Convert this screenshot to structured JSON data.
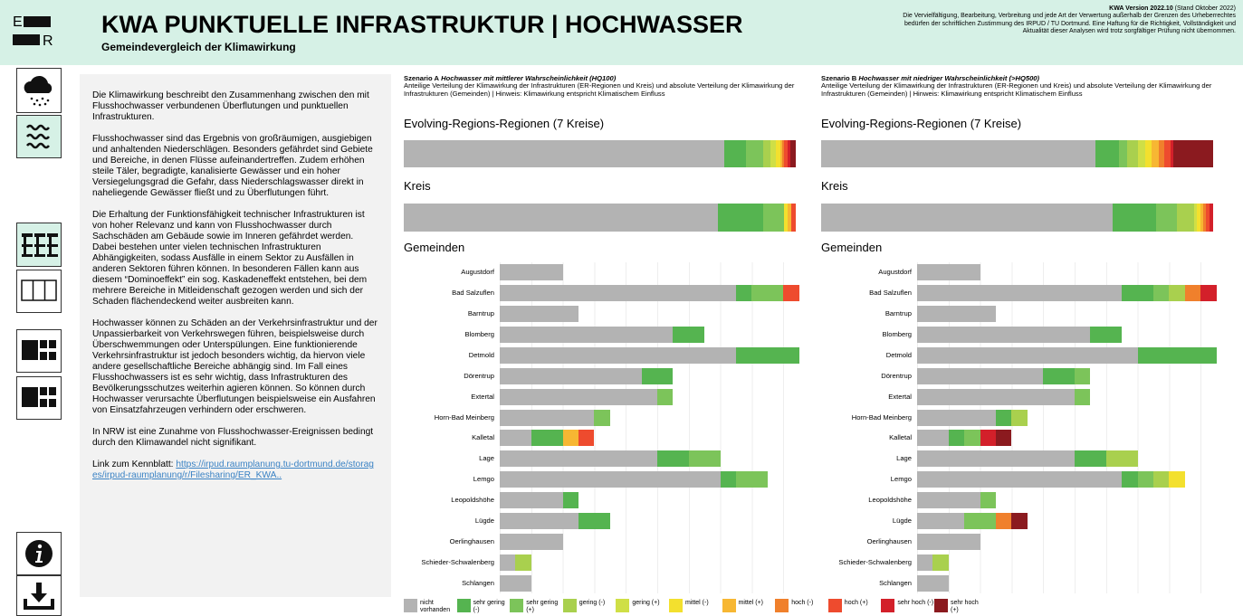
{
  "header": {
    "logo_top": "E",
    "logo_bottom": "R",
    "title": "KWA PUNKTUELLE INFRASTRUKTUR | HOCHWASSER",
    "subtitle": "Gemeindevergleich der Klimawirkung",
    "version": "KWA Version 2022.10",
    "version_note": "(Stand Oktober 2022)",
    "note": "Die Vervielfältigung, Bearbeitung, Verbreitung und jede Art der Verwertung außerhalb der Grenzen des Urheberrechtes bedürfen der schriftlichen Zustimmung des IRPUD / TU Dortmund. Eine Haftung für die Richtigkeit, Vollständigkeit und Aktualität dieser Analysen wird trotz sorgfältiger Prüfung nicht übernommen."
  },
  "description": {
    "paragraphs": [
      "Die Klimawirkung beschreibt den Zusammenhang zwischen den mit Flusshochwasser verbundenen Überflutungen und punktuellen Infrastrukturen.",
      "Flusshochwasser sind das Ergebnis von großräumigen, ausgiebigen und anhaltenden Niederschlägen. Besonders gefährdet sind Gebiete und Bereiche, in denen Flüsse aufeinandertreffen. Zudem erhöhen steile Täler, begradigte, kanalisierte Gewässer und ein hoher Versiegelungsgrad die Gefahr, dass Niederschlagswasser direkt in naheliegende Gewässer fließt und zu Überflutungen führt.",
      "Die Erhaltung der Funktionsfähigkeit technischer Infrastrukturen ist von hoher Relevanz und kann von Flusshochwasser durch Sachschäden am Gebäude sowie im Inneren gefährdet werden. Dabei bestehen unter vielen technischen Infrastrukturen Abhängigkeiten, sodass Ausfälle in einem Sektor zu Ausfällen in anderen Sektoren führen können. In besonderen Fällen kann aus diesem “Dominoeffekt” ein sog. Kaskadeneffekt entstehen, bei dem mehrere Bereiche in Mitleidenschaft gezogen werden und sich der Schaden flächendeckend weiter ausbreiten kann.",
      "Hochwasser können zu Schäden an der Verkehrsinfrastruktur und der Unpassierbarkeit von Verkehrswegen führen, beispielsweise durch Überschwemmungen oder Unterspülungen. Eine funktionierende Verkehrsinfrastruktur ist jedoch besonders wichtig, da hiervon viele andere gesellschaftliche Bereiche abhängig sind. Im Fall eines Flusshochwassers ist es sehr wichtig, dass Infrastrukturen des Bevölkerungsschutzes weiterhin agieren können. So können durch Hochwasser verursachte Überflutungen beispielsweise ein Ausfahren von Einsatzfahrzeugen verhindern oder erschweren.",
      "In NRW ist eine Zunahme von Flusshochwasser-Ereignissen bedingt durch den Klimawandel nicht signifikant."
    ],
    "link_label": "Link zum Kennblatt:",
    "link_text": "https://irpud.raumplanung.tu-dortmund.de/storages/irpud-raumplanung/r/Filesharing/ER_KWA.."
  },
  "scenarios": [
    {
      "label": "Szenario A",
      "name": "Hochwasser mit mittlerer Wahrscheinlichkeit (HQ100)",
      "description": "Anteilige Verteilung der Klimawirkung der Infrastrukturen (ER-Regionen und Kreis) und absolute Verteilung der Klimawirkung der Infrastrukturen (Gemeinden) | Hinweis: Klimawirkung entspricht Klimatischem Einfluss"
    },
    {
      "label": "Szenario B",
      "name": "Hochwasser mit niedriger Wahrscheinlichkeit (>HQ500)",
      "description": "Anteilige Verteilung der Klimawirkung der Infrastrukturen (ER-Regionen und Kreis) und absolute Verteilung der Klimawirkung der Infrastrukturen (Gemeinden) | Hinweis: Klimawirkung entspricht Klimatischem Einfluss"
    }
  ],
  "legend": [
    {
      "label": "nicht vorhanden",
      "color": "#b3b3b3"
    },
    {
      "label": "sehr gering (-)",
      "color": "#55b450"
    },
    {
      "label": "sehr gering (+)",
      "color": "#7cc45a"
    },
    {
      "label": "gering (-)",
      "color": "#a9d04e"
    },
    {
      "label": "gering (+)",
      "color": "#cfdf46"
    },
    {
      "label": "mittel (-)",
      "color": "#f3e02e"
    },
    {
      "label": "mittel (+)",
      "color": "#f7b733"
    },
    {
      "label": "hoch (-)",
      "color": "#f0802c"
    },
    {
      "label": "hoch (+)",
      "color": "#ee4b2e"
    },
    {
      "label": "sehr hoch (-)",
      "color": "#d3202a"
    },
    {
      "label": "sehr hoch (+)",
      "color": "#8b1a1f"
    }
  ],
  "chart_data": [
    {
      "type": "bar",
      "title": "Evolving-Regions-Regionen (7 Kreise)",
      "series": [
        {
          "values": [
            81.8
          ]
        },
        {
          "values": [
            5.5
          ]
        },
        {
          "values": [
            4.4
          ]
        },
        {
          "values": [
            1.8
          ]
        },
        {
          "values": [
            1.4
          ]
        },
        {
          "values": [
            1.2
          ]
        },
        {
          "values": [
            0.5
          ]
        },
        {
          "values": [
            0.5
          ]
        },
        {
          "values": [
            0.8
          ]
        },
        {
          "values": [
            0.7
          ]
        },
        {
          "values": [
            1.4
          ]
        }
      ]
    },
    {
      "type": "bar",
      "title": "Kreis",
      "series": [
        {
          "values": [
            80.1
          ]
        },
        {
          "values": [
            11.5
          ]
        },
        {
          "values": [
            5.3
          ]
        },
        {
          "values": [
            0
          ]
        },
        {
          "values": [
            0
          ]
        },
        {
          "values": [
            1.1
          ]
        },
        {
          "values": [
            0.9
          ]
        },
        {
          "values": [
            0
          ]
        },
        {
          "values": [
            1.1
          ]
        },
        {
          "values": [
            0
          ]
        },
        {
          "values": [
            0
          ]
        }
      ]
    },
    {
      "type": "bar",
      "title": "Gemeinden",
      "categories": [
        "Augustdorf",
        "Bad Salzuflen",
        "Barntrup",
        "Blomberg",
        "Detmold",
        "Dörentrup",
        "Extertal",
        "Horn-Bad Meinberg",
        "Kalletal",
        "Lage",
        "Lemgo",
        "Leopoldshöhe",
        "Lügde",
        "Oerlinghausen",
        "Schieder-Schwalenberg",
        "Schlangen"
      ],
      "series": [
        {
          "values": [
            4,
            15,
            5,
            11,
            15,
            9,
            10,
            6,
            2,
            10,
            14,
            4,
            5,
            4,
            1,
            2
          ]
        },
        {
          "values": [
            0,
            1,
            0,
            2,
            4,
            2,
            0,
            0,
            2,
            2,
            1,
            1,
            2,
            0,
            0,
            0
          ]
        },
        {
          "values": [
            0,
            2,
            0,
            0,
            0,
            0,
            1,
            1,
            0,
            2,
            2,
            0,
            0,
            0,
            0,
            0
          ]
        },
        {
          "values": [
            0,
            0,
            0,
            0,
            0,
            0,
            0,
            0,
            0,
            0,
            0,
            0,
            0,
            0,
            1,
            0
          ]
        },
        {
          "values": [
            0,
            0,
            0,
            0,
            0,
            0,
            0,
            0,
            0,
            0,
            0,
            0,
            0,
            0,
            0,
            0
          ]
        },
        {
          "values": [
            0,
            0,
            0,
            0,
            0,
            0,
            0,
            0,
            0,
            0,
            0,
            0,
            0,
            0,
            0,
            0
          ]
        },
        {
          "values": [
            0,
            0,
            0,
            0,
            0,
            0,
            0,
            0,
            1,
            0,
            0,
            0,
            0,
            0,
            0,
            0
          ]
        },
        {
          "values": [
            0,
            0,
            0,
            0,
            0,
            0,
            0,
            0,
            0,
            0,
            0,
            0,
            0,
            0,
            0,
            0
          ]
        },
        {
          "values": [
            0,
            1,
            0,
            0,
            0,
            0,
            0,
            0,
            1,
            0,
            0,
            0,
            0,
            0,
            0,
            0
          ]
        },
        {
          "values": [
            0,
            0,
            0,
            0,
            0,
            0,
            0,
            0,
            0,
            0,
            0,
            0,
            0,
            0,
            0,
            0
          ]
        },
        {
          "values": [
            0,
            0,
            0,
            0,
            0,
            0,
            0,
            0,
            0,
            0,
            0,
            0,
            0,
            0,
            0,
            0
          ]
        }
      ]
    },
    {
      "type": "bar",
      "title": "Evolving-Regions-Regionen (7 Kreise)",
      "series": [
        {
          "values": [
            70.0
          ]
        },
        {
          "values": [
            6.0
          ]
        },
        {
          "values": [
            2.1
          ]
        },
        {
          "values": [
            2.8
          ]
        },
        {
          "values": [
            1.8
          ]
        },
        {
          "values": [
            1.6
          ]
        },
        {
          "values": [
            1.8
          ]
        },
        {
          "values": [
            1.4
          ]
        },
        {
          "values": [
            1.6
          ]
        },
        {
          "values": [
            0.7
          ]
        },
        {
          "values": [
            10.2
          ]
        }
      ]
    },
    {
      "type": "bar",
      "title": "Kreis",
      "series": [
        {
          "values": [
            74.4
          ]
        },
        {
          "values": [
            11.1
          ]
        },
        {
          "values": [
            5.3
          ]
        },
        {
          "values": [
            4.4
          ]
        },
        {
          "values": [
            0.7
          ]
        },
        {
          "values": [
            0.9
          ]
        },
        {
          "values": [
            0.7
          ]
        },
        {
          "values": [
            0.7
          ]
        },
        {
          "values": [
            0.9
          ]
        },
        {
          "values": [
            0.9
          ]
        },
        {
          "values": [
            0
          ]
        }
      ]
    },
    {
      "type": "bar",
      "title": "Gemeinden",
      "categories": [
        "Augustdorf",
        "Bad Salzuflen",
        "Barntrup",
        "Blomberg",
        "Detmold",
        "Dörentrup",
        "Extertal",
        "Horn-Bad Meinberg",
        "Kalletal",
        "Lage",
        "Lemgo",
        "Leopoldshöhe",
        "Lügde",
        "Oerlinghausen",
        "Schieder-Schwalenberg",
        "Schlangen"
      ],
      "series": [
        {
          "values": [
            4,
            13,
            5,
            11,
            14,
            8,
            10,
            5,
            2,
            10,
            13,
            4,
            3,
            4,
            1,
            2
          ]
        },
        {
          "values": [
            0,
            2,
            0,
            2,
            5,
            2,
            0,
            1,
            1,
            2,
            1,
            0,
            0,
            0,
            0,
            0
          ]
        },
        {
          "values": [
            0,
            1,
            0,
            0,
            0,
            1,
            1,
            0,
            1,
            0,
            1,
            1,
            2,
            0,
            0,
            0
          ]
        },
        {
          "values": [
            0,
            1,
            0,
            0,
            0,
            0,
            0,
            1,
            0,
            2,
            1,
            0,
            0,
            0,
            1,
            0
          ]
        },
        {
          "values": [
            0,
            0,
            0,
            0,
            0,
            0,
            0,
            0,
            0,
            0,
            0,
            0,
            0,
            0,
            0,
            0
          ]
        },
        {
          "values": [
            0,
            0,
            0,
            0,
            0,
            0,
            0,
            0,
            0,
            0,
            1,
            0,
            0,
            0,
            0,
            0
          ]
        },
        {
          "values": [
            0,
            0,
            0,
            0,
            0,
            0,
            0,
            0,
            0,
            0,
            0,
            0,
            0,
            0,
            0,
            0
          ]
        },
        {
          "values": [
            0,
            1,
            0,
            0,
            0,
            0,
            0,
            0,
            0,
            0,
            0,
            0,
            1,
            0,
            0,
            0
          ]
        },
        {
          "values": [
            0,
            0,
            0,
            0,
            0,
            0,
            0,
            0,
            0,
            0,
            0,
            0,
            0,
            0,
            0,
            0
          ]
        },
        {
          "values": [
            0,
            1,
            0,
            0,
            0,
            0,
            0,
            0,
            1,
            0,
            0,
            0,
            0,
            0,
            0,
            0
          ]
        },
        {
          "values": [
            0,
            0,
            0,
            0,
            0,
            0,
            0,
            0,
            1,
            0,
            0,
            0,
            1,
            0,
            0,
            0
          ]
        }
      ]
    }
  ]
}
